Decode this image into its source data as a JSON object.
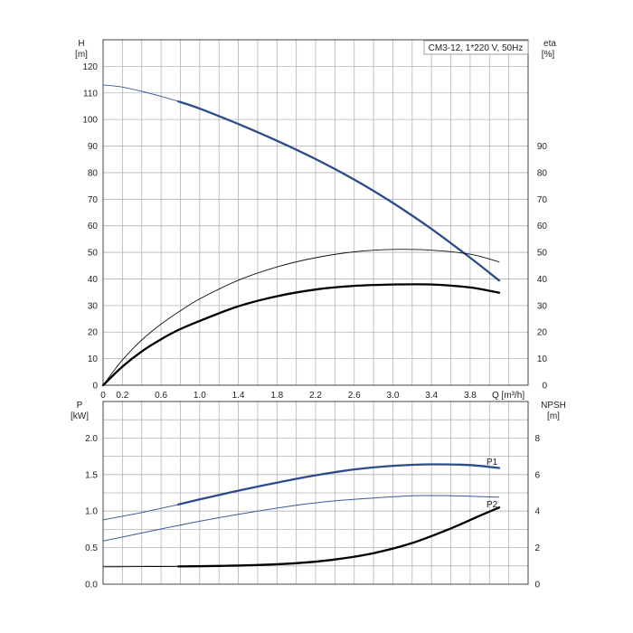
{
  "chart_data": [
    {
      "type": "line",
      "title": "CM3-12, 1*220 V, 50Hz",
      "ylabel": "H",
      "ylabel_unit": "[m]",
      "y2label": "eta",
      "y2label_unit": "[%]",
      "xlabel": "Q [m³/h]",
      "xlim": [
        0,
        4.4
      ],
      "ylim": [
        0,
        130
      ],
      "y2lim": [
        0,
        130
      ],
      "grid": true,
      "x_ticks": [
        "0",
        "0.2",
        "0.6",
        "1.0",
        "1.4",
        "1.8",
        "2.2",
        "2.6",
        "3.0",
        "3.4",
        "3.8"
      ],
      "x_tick_values": [
        0,
        0.2,
        0.6,
        1.0,
        1.4,
        1.8,
        2.2,
        2.6,
        3.0,
        3.4,
        3.8
      ],
      "y_ticks": [
        "0",
        "10",
        "20",
        "30",
        "40",
        "50",
        "60",
        "70",
        "80",
        "90",
        "100",
        "110",
        "120"
      ],
      "y2_ticks": [
        "0",
        "10",
        "20",
        "30",
        "40",
        "50",
        "60",
        "70",
        "80",
        "90"
      ],
      "series": [
        {
          "role": "H-thin",
          "color": "#3a5a9c",
          "x": [
            0,
            0.2,
            0.4,
            0.6,
            0.78
          ],
          "y": [
            113,
            112.2,
            110.6,
            108.7,
            106.8
          ]
        },
        {
          "role": "H-bold",
          "color": "#2b4c8c",
          "x": [
            0.78,
            1.0,
            1.4,
            1.8,
            2.2,
            2.6,
            3.0,
            3.4,
            3.8,
            4.1
          ],
          "y": [
            106.8,
            104.1,
            98.3,
            92,
            85.1,
            77.4,
            68.6,
            58.8,
            48,
            39.4
          ]
        },
        {
          "role": "eta-thin",
          "color": "#111111",
          "x": [
            0,
            0.2,
            0.4,
            0.6,
            0.8,
            1.0,
            1.4,
            1.8,
            2.2,
            2.6,
            3.0,
            3.4,
            3.8,
            4.1
          ],
          "y": [
            0,
            9.5,
            17,
            23,
            28,
            32.5,
            39.5,
            44.5,
            48,
            50.2,
            51.1,
            50.8,
            49.3,
            46.4
          ]
        },
        {
          "role": "eta-bold",
          "color": "#000000",
          "x": [
            0,
            0.2,
            0.4,
            0.6,
            0.78,
            1.0,
            1.4,
            1.8,
            2.2,
            2.6,
            3.0,
            3.4,
            3.8,
            4.1
          ],
          "y": [
            0,
            7,
            12.7,
            17.3,
            20.8,
            24.2,
            29.7,
            33.5,
            36,
            37.4,
            37.9,
            37.9,
            36.8,
            34.8
          ]
        }
      ]
    },
    {
      "type": "line",
      "ylabel": "P",
      "ylabel_unit": "[kW]",
      "y2label": "NPSH",
      "y2label_unit": "[m]",
      "xlim": [
        0,
        4.4
      ],
      "ylim": [
        0,
        2.5
      ],
      "y2lim": [
        0,
        10
      ],
      "grid": true,
      "y_ticks": [
        "0.0",
        "0.5",
        "1.0",
        "1.5",
        "2.0"
      ],
      "y_tick_values": [
        0,
        0.5,
        1.0,
        1.5,
        2.0
      ],
      "y2_ticks": [
        "0",
        "2",
        "4",
        "6",
        "8"
      ],
      "y2_tick_values": [
        0,
        2,
        4,
        6,
        8
      ],
      "series": [
        {
          "name": "P1",
          "axis": "left",
          "color": "#2b4c8c",
          "x": [
            0,
            0.4,
            0.78,
            1.0,
            1.4,
            1.8,
            2.2,
            2.6,
            3.0,
            3.4,
            3.8,
            4.1
          ],
          "y": [
            0.88,
            0.98,
            1.09,
            1.16,
            1.28,
            1.39,
            1.49,
            1.57,
            1.62,
            1.64,
            1.63,
            1.59
          ]
        },
        {
          "name": "P2",
          "axis": "left",
          "color": "#3a5a9c",
          "x": [
            0,
            0.4,
            0.8,
            1.2,
            1.6,
            2.0,
            2.4,
            2.8,
            3.2,
            3.6,
            4.1
          ],
          "y": [
            0.59,
            0.7,
            0.81,
            0.91,
            1.0,
            1.08,
            1.14,
            1.18,
            1.21,
            1.21,
            1.19
          ]
        },
        {
          "role": "NPSH",
          "axis": "right",
          "color": "#000000",
          "x": [
            0,
            0.4,
            0.78,
            1.2,
            1.6,
            2.0,
            2.4,
            2.8,
            3.2,
            3.6,
            3.9,
            4.1
          ],
          "y": [
            0.95,
            0.96,
            0.97,
            1.0,
            1.05,
            1.15,
            1.35,
            1.7,
            2.25,
            3.05,
            3.75,
            4.2
          ]
        }
      ]
    }
  ]
}
